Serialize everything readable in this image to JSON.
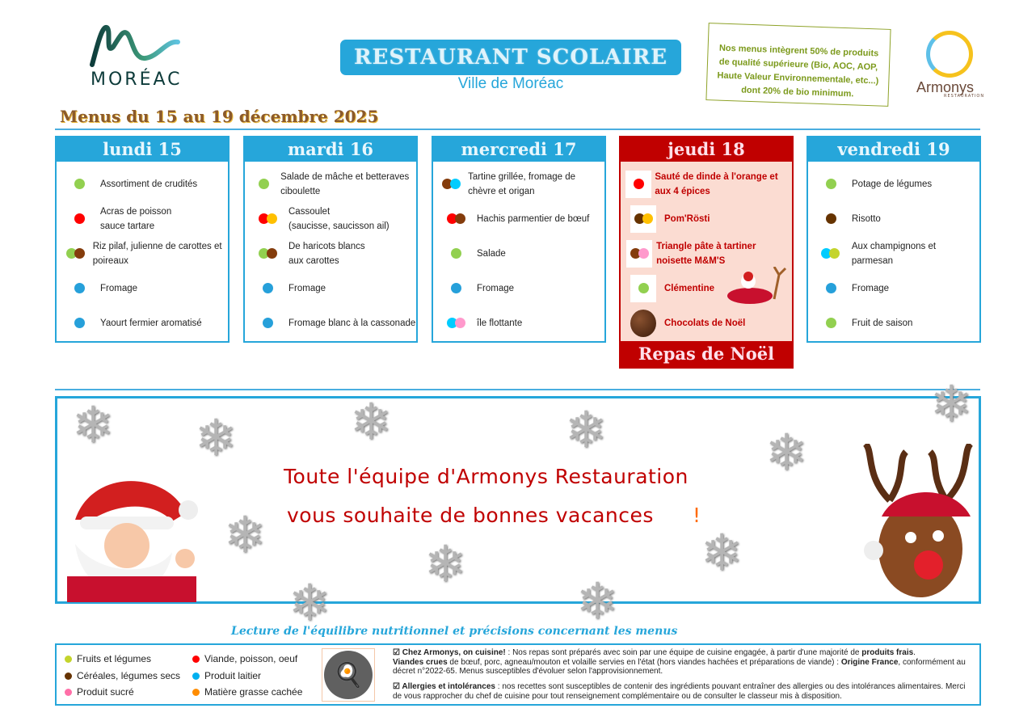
{
  "header": {
    "logo_text": "MORÉAC",
    "title": "RESTAURANT SCOLAIRE",
    "subtitle": "Ville de Moréac",
    "quality_note": "Nos menus intègrent 50% de produits de qualité supérieure (Bio, AOC, AOP, Haute Valeur Environnementale, etc...) dont 20% de bio minimum.",
    "partner_logo": "Armonys",
    "partner_logo_sub": "RESTAURATION",
    "week_title": "Menus du 15 au 19 décembre 2025"
  },
  "colors": {
    "accent": "#26a6da",
    "christmas": "#c00000",
    "fruits": "#92d050",
    "viande": "#ff0000",
    "cereales": "#843c0c",
    "laitier": "#26a0da",
    "sucre": "#ff99cc",
    "matiere_grasse": "#ff8c00",
    "yellow": "#ffc000",
    "cyan": "#00ccff",
    "lime": "#c4d42c"
  },
  "days": [
    {
      "name": "lundi 15",
      "items": [
        {
          "text": "Assortiment de crudités",
          "dots": [
            "#92d050"
          ]
        },
        {
          "text": "Acras de poisson\nsauce tartare",
          "dots": [
            "#ff0000"
          ]
        },
        {
          "text": "Riz pilaf, julienne de carottes et poireaux",
          "dots": [
            "#92d050",
            "#843c0c"
          ]
        },
        {
          "text": "Fromage",
          "dots": [
            "#26a0da"
          ]
        },
        {
          "text": "Yaourt fermier aromatisé",
          "dots": [
            "#26a0da"
          ]
        }
      ]
    },
    {
      "name": "mardi 16",
      "items": [
        {
          "text": "Salade de mâche et betteraves ciboulette",
          "dots": [
            "#92d050"
          ]
        },
        {
          "text": "Cassoulet\n(saucisse, saucisson ail)",
          "dots": [
            "#ff0000",
            "#ffc000"
          ]
        },
        {
          "text": "De haricots blancs\naux carottes",
          "dots": [
            "#92d050",
            "#843c0c"
          ]
        },
        {
          "text": "Fromage",
          "dots": [
            "#26a0da"
          ]
        },
        {
          "text": "Fromage blanc à la cassonade",
          "dots": [
            "#26a0da"
          ]
        }
      ]
    },
    {
      "name": "mercredi 17",
      "items": [
        {
          "text": "Tartine grillée, fromage de chèvre et origan",
          "dots": [
            "#843c0c",
            "#00ccff"
          ]
        },
        {
          "text": "Hachis parmentier de bœuf",
          "dots": [
            "#ff0000",
            "#843c0c"
          ]
        },
        {
          "text": "Salade",
          "dots": [
            "#92d050"
          ]
        },
        {
          "text": "Fromage",
          "dots": [
            "#26a0da"
          ]
        },
        {
          "text": "île flottante",
          "dots": [
            "#00ccff",
            "#ff99cc"
          ]
        }
      ]
    },
    {
      "name": "jeudi 18",
      "footer": "Repas de Noël",
      "items": [
        {
          "text": "Sauté de dinde à l'orange et aux 4 épices",
          "dots": [
            "#ff0000"
          ]
        },
        {
          "text": "Pom'Rösti",
          "dots": [
            "#663300",
            "#ffc000"
          ]
        },
        {
          "text": "Triangle pâte à tartiner noisette M&M'S",
          "dots": [
            "#843c0c",
            "#ff99cc"
          ]
        },
        {
          "text": "Clémentine",
          "dots": [
            "#92d050"
          ]
        },
        {
          "text": "Chocolats de Noël",
          "dots": [],
          "icon": "chocolate"
        }
      ]
    },
    {
      "name": "vendredi 19",
      "items": [
        {
          "text": "Potage de légumes",
          "dots": [
            "#92d050"
          ]
        },
        {
          "text": "Risotto",
          "dots": [
            "#663300"
          ]
        },
        {
          "text": "Aux champignons et parmesan",
          "dots": [
            "#00ccff",
            "#c4d42c"
          ]
        },
        {
          "text": "Fromage",
          "dots": [
            "#26a0da"
          ]
        },
        {
          "text": "Fruit de saison",
          "dots": [
            "#92d050"
          ]
        }
      ]
    }
  ],
  "banner": {
    "line1": "Toute l'équipe d'Armonys Restauration",
    "line2": "vous souhaite de bonnes vacances",
    "exclaim": "!"
  },
  "legend": {
    "title": "Lecture de l'équilibre nutritionnel et précisions concernant les menus",
    "items": [
      {
        "label": "Fruits et légumes",
        "color": "#c4d42c"
      },
      {
        "label": "Céréales, légumes secs",
        "color": "#663300"
      },
      {
        "label": "Produit sucré",
        "color": "#ff6fa8"
      },
      {
        "label": "Viande, poisson, oeuf",
        "color": "#ff0000"
      },
      {
        "label": "Produit laitier",
        "color": "#00b0f0"
      },
      {
        "label": "Matière grasse cachée",
        "color": "#ff8c00"
      }
    ],
    "note1_bold": "☑ Chez Armonys, on cuisine!",
    "note1_a": " : Nos repas sont préparés avec soin par une équipe de cuisine engagée, à partir d'une majorité de ",
    "note1_b": "produits frais",
    "note1_c": ".",
    "note1_bold2": "Viandes crues",
    "note1_d": " de bœuf, porc, agneau/mouton et volaille servies en l'état (hors viandes hachées et préparations de viande) : ",
    "note1_e": "Origine France",
    "note1_f": ", conformément au décret n°2022-65. Menus susceptibles d'évoluer selon l'approvisionnement.",
    "note2_bold": "☑ Allergies et intolérances",
    "note2_text": " : nos recettes sont susceptibles de contenir des ingrédients pouvant entraîner des allergies ou des intolérances alimentaires. Merci de vous rapprocher du chef de cuisine pour tout renseignement complémentaire ou de consulter le classeur  mis à disposition."
  }
}
